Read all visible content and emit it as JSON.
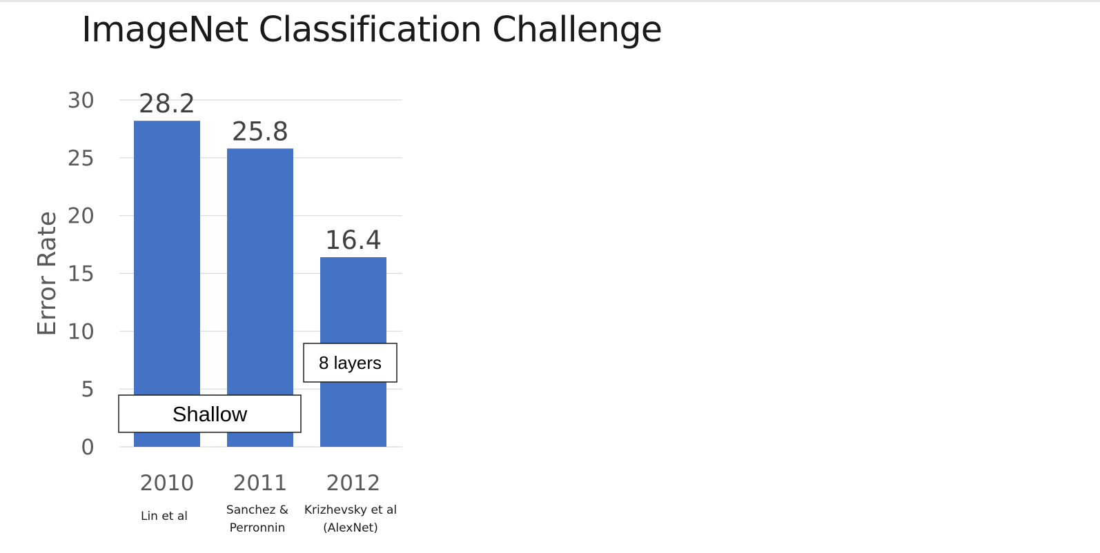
{
  "slide": {
    "title": "ImageNet Classification Challenge"
  },
  "colors": {
    "bar": "#4472C4",
    "gridline": "#D9D9D9"
  },
  "chart_data": {
    "type": "bar",
    "title": "",
    "xlabel": "",
    "ylabel": "Error Rate",
    "ylim": [
      0,
      30
    ],
    "yticks": [
      0,
      5,
      10,
      15,
      20,
      25,
      30
    ],
    "grid": true,
    "categories": [
      "2010",
      "2011",
      "2012"
    ],
    "category_sublabels": [
      [
        "Lin et al"
      ],
      [
        "Sanchez &",
        "Perronnin"
      ],
      [
        "Krizhevsky et al",
        "(AlexNet)"
      ]
    ],
    "values": [
      28.2,
      25.8,
      16.4
    ],
    "value_labels": [
      "28.2",
      "25.8",
      "16.4"
    ],
    "annotations": [
      {
        "text": "Shallow",
        "categories": [
          "2010",
          "2011"
        ]
      },
      {
        "text": "8 layers",
        "categories": [
          "2012"
        ]
      }
    ]
  }
}
